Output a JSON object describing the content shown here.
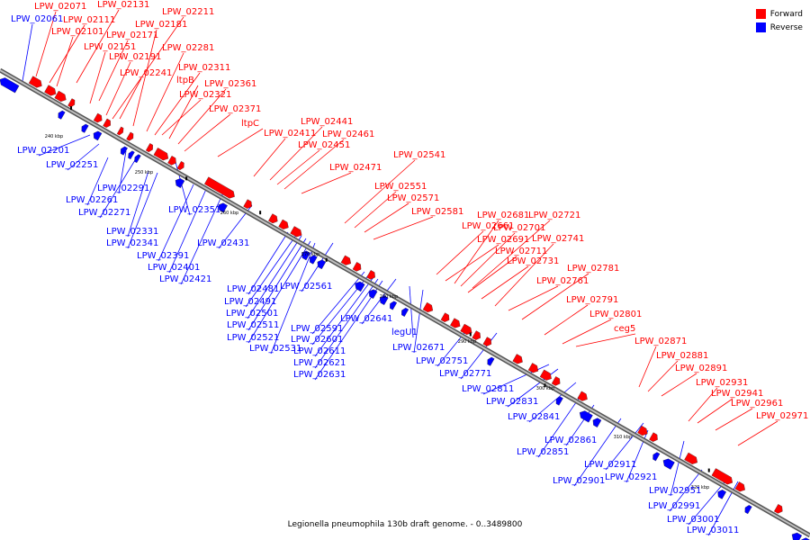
{
  "caption": "Legionella pneumophila 130b draft genome. - 0..3489800",
  "colors": {
    "forward": "#ff0000",
    "reverse": "#0000ff",
    "backbone": "#8c8c8c"
  },
  "legend": [
    {
      "label": "Forward",
      "color": "#ff0000"
    },
    {
      "label": "Reverse",
      "color": "#0000ff"
    }
  ],
  "ticks": [
    "240 kbp",
    "250 kbp",
    "260 kbp",
    "270 kbp",
    "280 kbp",
    "290 kbp",
    "300 kbp",
    "310 kbp",
    "320 kbp"
  ],
  "forward_labels": [
    "LPW_02071",
    "LPW_02111",
    "LPW_02101",
    "LPW_02151",
    "LPW_02191",
    "LPW_02241",
    "LPW_02131",
    "LPW_02211",
    "LPW_02181",
    "LPW_02171",
    "LPW_02281",
    "LPW_02311",
    "ltpB",
    "LPW_02361",
    "LPW_02321",
    "LPW_02371",
    "ltpC",
    "LPW_02441",
    "LPW_02411",
    "LPW_02461",
    "LPW_02451",
    "LPW_02471",
    "LPW_02541",
    "LPW_02551",
    "LPW_02571",
    "LPW_02581",
    "LPW_02681",
    "LPW_02721",
    "LPW_02661",
    "LPW_02701",
    "LPW_02691",
    "LPW_02741",
    "LPW_02711",
    "LPW_02731",
    "LPW_02781",
    "LPW_02761",
    "LPW_02791",
    "LPW_02801",
    "ceg5",
    "LPW_02871",
    "LPW_02881",
    "LPW_02891",
    "LPW_02931",
    "LPW_02941",
    "LPW_02961",
    "LPW_02971"
  ],
  "reverse_labels": [
    "LPW_02061",
    "LPW_02201",
    "LPW_02251",
    "LPW_02291",
    "LPW_02261",
    "LPW_02271",
    "LPW_02351",
    "LPW_02331",
    "LPW_02341",
    "LPW_02391",
    "LPW_02401",
    "LPW_02431",
    "LPW_02421",
    "LPW_02481",
    "LPW_02561",
    "LPW_02491",
    "LPW_02501",
    "LPW_02511",
    "LPW_02521",
    "LPW_02531",
    "LPW_02591",
    "LPW_02601",
    "LPW_02611",
    "LPW_02621",
    "LPW_02631",
    "LPW_02641",
    "legU1",
    "LPW_02671",
    "LPW_02751",
    "LPW_02771",
    "LPW_02811",
    "LPW_02831",
    "LPW_02841",
    "LPW_02861",
    "LPW_02851",
    "LPW_02911",
    "LPW_02901",
    "LPW_02921",
    "LPW_02951",
    "LPW_02991",
    "LPW_03001",
    "LPW_03011"
  ]
}
